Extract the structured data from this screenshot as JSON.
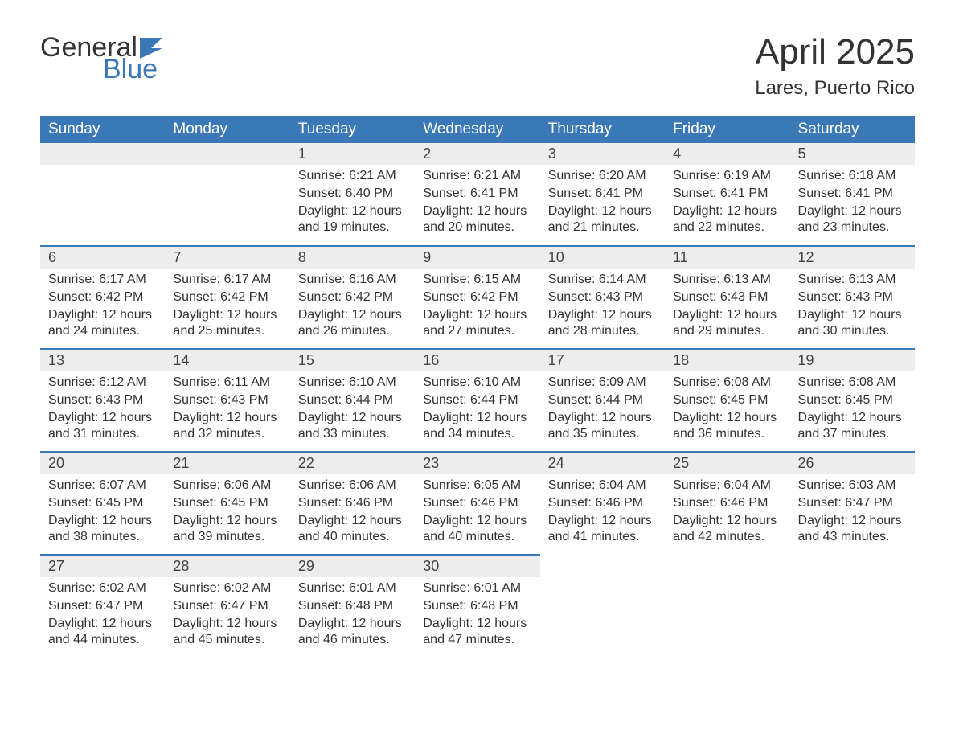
{
  "logo": {
    "text_general": "General",
    "text_blue": "Blue"
  },
  "title": "April 2025",
  "subtitle": "Lares, Puerto Rico",
  "colors": {
    "header_bg": "#3a78b8",
    "header_text": "#ffffff",
    "daynum_bg": "#ededed",
    "row_border": "#3a78b8",
    "body_text": "#333333",
    "page_bg": "#ffffff"
  },
  "day_headers": [
    "Sunday",
    "Monday",
    "Tuesday",
    "Wednesday",
    "Thursday",
    "Friday",
    "Saturday"
  ],
  "labels": {
    "sunrise": "Sunrise:",
    "sunset": "Sunset:",
    "daylight": "Daylight:"
  },
  "weeks": [
    [
      {
        "n": "",
        "sunrise": "",
        "sunset": "",
        "daylight": ""
      },
      {
        "n": "",
        "sunrise": "",
        "sunset": "",
        "daylight": ""
      },
      {
        "n": "1",
        "sunrise": "6:21 AM",
        "sunset": "6:40 PM",
        "daylight": "12 hours and 19 minutes."
      },
      {
        "n": "2",
        "sunrise": "6:21 AM",
        "sunset": "6:41 PM",
        "daylight": "12 hours and 20 minutes."
      },
      {
        "n": "3",
        "sunrise": "6:20 AM",
        "sunset": "6:41 PM",
        "daylight": "12 hours and 21 minutes."
      },
      {
        "n": "4",
        "sunrise": "6:19 AM",
        "sunset": "6:41 PM",
        "daylight": "12 hours and 22 minutes."
      },
      {
        "n": "5",
        "sunrise": "6:18 AM",
        "sunset": "6:41 PM",
        "daylight": "12 hours and 23 minutes."
      }
    ],
    [
      {
        "n": "6",
        "sunrise": "6:17 AM",
        "sunset": "6:42 PM",
        "daylight": "12 hours and 24 minutes."
      },
      {
        "n": "7",
        "sunrise": "6:17 AM",
        "sunset": "6:42 PM",
        "daylight": "12 hours and 25 minutes."
      },
      {
        "n": "8",
        "sunrise": "6:16 AM",
        "sunset": "6:42 PM",
        "daylight": "12 hours and 26 minutes."
      },
      {
        "n": "9",
        "sunrise": "6:15 AM",
        "sunset": "6:42 PM",
        "daylight": "12 hours and 27 minutes."
      },
      {
        "n": "10",
        "sunrise": "6:14 AM",
        "sunset": "6:43 PM",
        "daylight": "12 hours and 28 minutes."
      },
      {
        "n": "11",
        "sunrise": "6:13 AM",
        "sunset": "6:43 PM",
        "daylight": "12 hours and 29 minutes."
      },
      {
        "n": "12",
        "sunrise": "6:13 AM",
        "sunset": "6:43 PM",
        "daylight": "12 hours and 30 minutes."
      }
    ],
    [
      {
        "n": "13",
        "sunrise": "6:12 AM",
        "sunset": "6:43 PM",
        "daylight": "12 hours and 31 minutes."
      },
      {
        "n": "14",
        "sunrise": "6:11 AM",
        "sunset": "6:43 PM",
        "daylight": "12 hours and 32 minutes."
      },
      {
        "n": "15",
        "sunrise": "6:10 AM",
        "sunset": "6:44 PM",
        "daylight": "12 hours and 33 minutes."
      },
      {
        "n": "16",
        "sunrise": "6:10 AM",
        "sunset": "6:44 PM",
        "daylight": "12 hours and 34 minutes."
      },
      {
        "n": "17",
        "sunrise": "6:09 AM",
        "sunset": "6:44 PM",
        "daylight": "12 hours and 35 minutes."
      },
      {
        "n": "18",
        "sunrise": "6:08 AM",
        "sunset": "6:45 PM",
        "daylight": "12 hours and 36 minutes."
      },
      {
        "n": "19",
        "sunrise": "6:08 AM",
        "sunset": "6:45 PM",
        "daylight": "12 hours and 37 minutes."
      }
    ],
    [
      {
        "n": "20",
        "sunrise": "6:07 AM",
        "sunset": "6:45 PM",
        "daylight": "12 hours and 38 minutes."
      },
      {
        "n": "21",
        "sunrise": "6:06 AM",
        "sunset": "6:45 PM",
        "daylight": "12 hours and 39 minutes."
      },
      {
        "n": "22",
        "sunrise": "6:06 AM",
        "sunset": "6:46 PM",
        "daylight": "12 hours and 40 minutes."
      },
      {
        "n": "23",
        "sunrise": "6:05 AM",
        "sunset": "6:46 PM",
        "daylight": "12 hours and 40 minutes."
      },
      {
        "n": "24",
        "sunrise": "6:04 AM",
        "sunset": "6:46 PM",
        "daylight": "12 hours and 41 minutes."
      },
      {
        "n": "25",
        "sunrise": "6:04 AM",
        "sunset": "6:46 PM",
        "daylight": "12 hours and 42 minutes."
      },
      {
        "n": "26",
        "sunrise": "6:03 AM",
        "sunset": "6:47 PM",
        "daylight": "12 hours and 43 minutes."
      }
    ],
    [
      {
        "n": "27",
        "sunrise": "6:02 AM",
        "sunset": "6:47 PM",
        "daylight": "12 hours and 44 minutes."
      },
      {
        "n": "28",
        "sunrise": "6:02 AM",
        "sunset": "6:47 PM",
        "daylight": "12 hours and 45 minutes."
      },
      {
        "n": "29",
        "sunrise": "6:01 AM",
        "sunset": "6:48 PM",
        "daylight": "12 hours and 46 minutes."
      },
      {
        "n": "30",
        "sunrise": "6:01 AM",
        "sunset": "6:48 PM",
        "daylight": "12 hours and 47 minutes."
      },
      {
        "n": "",
        "sunrise": "",
        "sunset": "",
        "daylight": ""
      },
      {
        "n": "",
        "sunrise": "",
        "sunset": "",
        "daylight": ""
      },
      {
        "n": "",
        "sunrise": "",
        "sunset": "",
        "daylight": ""
      }
    ]
  ]
}
